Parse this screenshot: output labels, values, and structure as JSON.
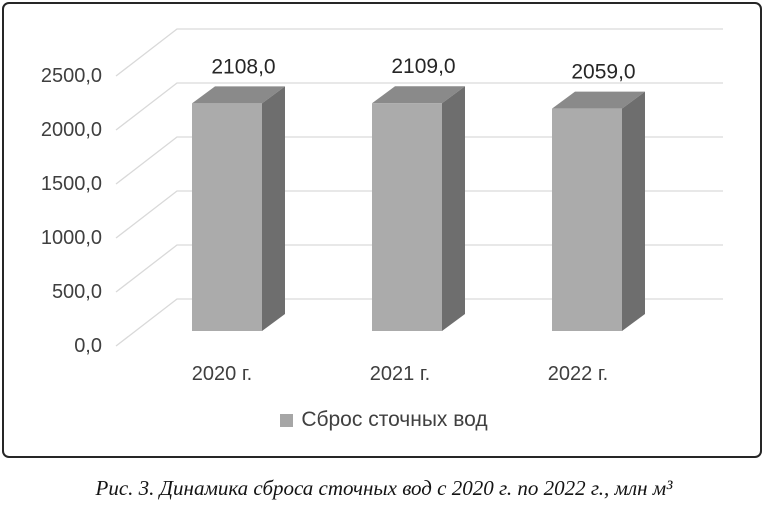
{
  "figure": {
    "caption": "Рис. 3. Динамика сброса сточных вод с 2020 г. по 2022 г., млн м³"
  },
  "colors": {
    "frame_border": "#262626",
    "gridline": "#d9d9d9",
    "bar_front": "#ababab",
    "bar_top": "#8a8a8a",
    "bar_side": "#6e6e6e",
    "axis_text": "#3f3f3f",
    "data_label_text": "#262626",
    "legend_marker": "#a6a6a6",
    "legend_text": "#404040"
  },
  "chart_data": {
    "type": "bar",
    "style": "3d",
    "title": "",
    "xlabel": "",
    "ylabel": "",
    "categories": [
      "2020 г.",
      "2021 г.",
      "2022 г."
    ],
    "series": [
      {
        "name": "Сброс сточных вод",
        "values": [
          2108.0,
          2109.0,
          2059.0
        ],
        "labels": [
          "2108,0",
          "2109,0",
          "2059,0"
        ]
      }
    ],
    "ylim": [
      0,
      2500
    ],
    "ytick_step": 500,
    "ytick_labels": [
      "0,0",
      "500,0",
      "1000,0",
      "1500,0",
      "2000,0",
      "2500,0"
    ],
    "grid": true,
    "legend_position": "bottom"
  }
}
